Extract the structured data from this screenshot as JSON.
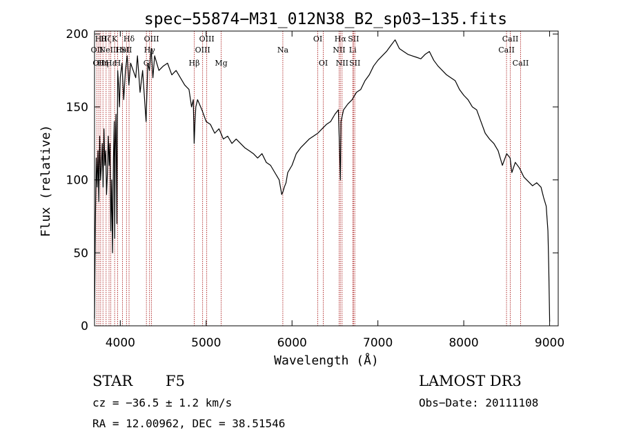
{
  "chart_data": {
    "type": "line",
    "title": "spec−55874−M31_012N38_B2_sp03−135.fits",
    "xlabel": "Wavelength (Å)",
    "ylabel": "Flux (relative)",
    "xlim": [
      3700,
      9100
    ],
    "ylim": [
      0,
      202
    ],
    "xticks": [
      {
        "value": 4000,
        "label": "4000"
      },
      {
        "value": 5000,
        "label": "5000"
      },
      {
        "value": 6000,
        "label": "6000"
      },
      {
        "value": 7000,
        "label": "7000"
      },
      {
        "value": 8000,
        "label": "8000"
      },
      {
        "value": 9000,
        "label": "9000"
      }
    ],
    "yticks": [
      {
        "value": 0,
        "label": "0"
      },
      {
        "value": 50,
        "label": "50"
      },
      {
        "value": 100,
        "label": "100"
      },
      {
        "value": 150,
        "label": "150"
      },
      {
        "value": 200,
        "label": "200"
      }
    ],
    "series": [
      {
        "name": "spectrum",
        "color": "#000000",
        "x": [
          3700,
          3710,
          3720,
          3730,
          3740,
          3750,
          3760,
          3770,
          3780,
          3790,
          3800,
          3810,
          3820,
          3830,
          3840,
          3850,
          3860,
          3870,
          3880,
          3890,
          3900,
          3910,
          3920,
          3930,
          3935,
          3940,
          3950,
          3960,
          3965,
          3970,
          3980,
          3990,
          4000,
          4020,
          4040,
          4060,
          4080,
          4100,
          4120,
          4150,
          4180,
          4200,
          4230,
          4260,
          4300,
          4320,
          4340,
          4360,
          4380,
          4400,
          4450,
          4500,
          4550,
          4600,
          4650,
          4700,
          4750,
          4800,
          4830,
          4850,
          4860,
          4870,
          4880,
          4900,
          4950,
          5000,
          5050,
          5100,
          5150,
          5200,
          5250,
          5300,
          5350,
          5400,
          5450,
          5500,
          5550,
          5600,
          5650,
          5700,
          5750,
          5800,
          5850,
          5880,
          5895,
          5910,
          5930,
          5950,
          6000,
          6050,
          6100,
          6150,
          6200,
          6250,
          6300,
          6350,
          6400,
          6450,
          6500,
          6540,
          6555,
          6563,
          6570,
          6600,
          6650,
          6700,
          6750,
          6800,
          6850,
          6900,
          6950,
          7000,
          7050,
          7100,
          7150,
          7200,
          7250,
          7300,
          7350,
          7400,
          7450,
          7500,
          7550,
          7600,
          7650,
          7700,
          7750,
          7800,
          7850,
          7900,
          7950,
          8000,
          8050,
          8100,
          8150,
          8200,
          8250,
          8300,
          8350,
          8400,
          8450,
          8500,
          8540,
          8560,
          8600,
          8650,
          8700,
          8750,
          8800,
          8850,
          8900,
          8930,
          8960,
          8980,
          8990,
          9000
        ],
        "values": [
          5,
          70,
          115,
          95,
          120,
          85,
          130,
          100,
          110,
          125,
          95,
          135,
          110,
          120,
          90,
          105,
          130,
          110,
          125,
          65,
          100,
          50,
          115,
          140,
          60,
          120,
          145,
          70,
          130,
          175,
          165,
          150,
          170,
          180,
          155,
          175,
          185,
          165,
          180,
          175,
          170,
          185,
          160,
          175,
          140,
          180,
          175,
          190,
          170,
          185,
          175,
          178,
          180,
          172,
          175,
          170,
          165,
          162,
          150,
          155,
          125,
          140,
          150,
          155,
          148,
          140,
          138,
          132,
          135,
          128,
          130,
          125,
          128,
          125,
          122,
          120,
          118,
          115,
          118,
          112,
          110,
          105,
          100,
          90,
          92,
          95,
          98,
          105,
          110,
          118,
          122,
          125,
          128,
          130,
          132,
          135,
          138,
          140,
          145,
          148,
          118,
          100,
          140,
          148,
          152,
          155,
          160,
          162,
          168,
          172,
          178,
          182,
          185,
          188,
          192,
          196,
          190,
          188,
          186,
          185,
          184,
          183,
          186,
          188,
          182,
          178,
          175,
          172,
          170,
          168,
          162,
          158,
          155,
          150,
          148,
          140,
          132,
          128,
          125,
          120,
          110,
          118,
          115,
          105,
          112,
          108,
          102,
          99,
          96,
          98,
          95,
          88,
          82,
          65,
          40,
          3
        ]
      }
    ],
    "lines": [
      {
        "wave": 3727,
        "label": "OII",
        "row": 2
      },
      {
        "wave": 3750,
        "label": "OII",
        "row": 3
      },
      {
        "wave": 3771,
        "label": "Hθ",
        "row": 1
      },
      {
        "wave": 3798,
        "label": "Hη",
        "row": 3
      },
      {
        "wave": 3835,
        "label": "Hζ",
        "row": 1
      },
      {
        "wave": 3869,
        "label": "NeIII",
        "row": 2
      },
      {
        "wave": 3890,
        "label": "Hε",
        "row": 3
      },
      {
        "wave": 3934,
        "label": "K",
        "row": 1
      },
      {
        "wave": 3969,
        "label": "H",
        "row": 3
      },
      {
        "wave": 4026,
        "label": "HeI",
        "row": 2
      },
      {
        "wave": 4072,
        "label": "SII",
        "row": 2
      },
      {
        "wave": 4102,
        "label": "Hδ",
        "row": 1
      },
      {
        "wave": 4304,
        "label": "G",
        "row": 3
      },
      {
        "wave": 4341,
        "label": "Hγ",
        "row": 2
      },
      {
        "wave": 4364,
        "label": "OIII",
        "row": 1
      },
      {
        "wave": 4861,
        "label": "Hβ",
        "row": 3
      },
      {
        "wave": 4959,
        "label": "OIII",
        "row": 2
      },
      {
        "wave": 5007,
        "label": "OIII",
        "row": 1
      },
      {
        "wave": 5175,
        "label": "Mg",
        "row": 3
      },
      {
        "wave": 5893,
        "label": "Na",
        "row": 2
      },
      {
        "wave": 6300,
        "label": "OI",
        "row": 1
      },
      {
        "wave": 6364,
        "label": "OI",
        "row": 3
      },
      {
        "wave": 6548,
        "label": "NII",
        "row": 2
      },
      {
        "wave": 6563,
        "label": "Hα",
        "row": 1
      },
      {
        "wave": 6583,
        "label": "NII",
        "row": 3
      },
      {
        "wave": 6707,
        "label": "Li",
        "row": 2
      },
      {
        "wave": 6716,
        "label": "SII",
        "row": 1
      },
      {
        "wave": 6731,
        "label": "SII",
        "row": 3
      },
      {
        "wave": 8498,
        "label": "CaII",
        "row": 2
      },
      {
        "wave": 8542,
        "label": "CaII",
        "row": 1
      },
      {
        "wave": 8662,
        "label": "CaII",
        "row": 3
      }
    ]
  },
  "info": {
    "class": "STAR",
    "subclass": "F5",
    "cz": "cz = −36.5 ± 1.2 km/s",
    "radec": "RA =  12.00962, DEC =  38.51546",
    "survey": "LAMOST DR3",
    "obsdate": "Obs−Date: 20111108"
  }
}
